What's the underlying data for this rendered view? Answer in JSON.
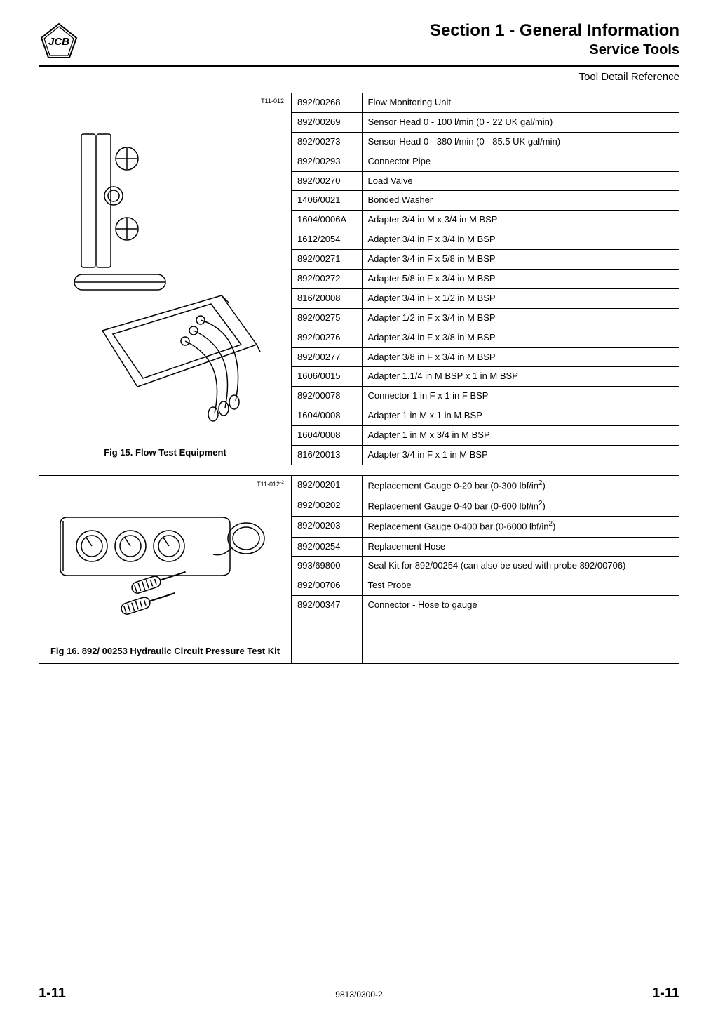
{
  "header": {
    "section": "Section 1 - General Information",
    "sub": "Service Tools",
    "toolRef": "Tool Detail Reference"
  },
  "fig15": {
    "code": "T11-012",
    "caption": "Fig 15. Flow Test Equipment",
    "rows": [
      {
        "pn": "892/00268",
        "desc": "Flow Monitoring Unit"
      },
      {
        "pn": "892/00269",
        "desc": "Sensor Head 0 - 100 l/min (0 - 22 UK gal/min)"
      },
      {
        "pn": "892/00273",
        "desc": "Sensor Head 0 - 380 l/min (0 - 85.5 UK gal/min)"
      },
      {
        "pn": "892/00293",
        "desc": "Connector Pipe"
      },
      {
        "pn": "892/00270",
        "desc": "Load Valve"
      },
      {
        "pn": "1406/0021",
        "desc": "Bonded Washer"
      },
      {
        "pn": "1604/0006A",
        "desc": "Adapter 3/4 in M x 3/4 in M BSP"
      },
      {
        "pn": "1612/2054",
        "desc": "Adapter 3/4 in F x 3/4 in M BSP"
      },
      {
        "pn": "892/00271",
        "desc": "Adapter 3/4 in F x 5/8 in M BSP"
      },
      {
        "pn": "892/00272",
        "desc": "Adapter 5/8 in F x 3/4 in M BSP"
      },
      {
        "pn": "816/20008",
        "desc": "Adapter 3/4 in F x 1/2 in M BSP"
      },
      {
        "pn": "892/00275",
        "desc": "Adapter 1/2 in F x 3/4 in M BSP"
      },
      {
        "pn": "892/00276",
        "desc": "Adapter 3/4 in F x 3/8 in M BSP"
      },
      {
        "pn": "892/00277",
        "desc": "Adapter 3/8 in F x 3/4 in M BSP"
      },
      {
        "pn": "1606/0015",
        "desc": "Adapter 1.1/4 in M BSP x 1 in M BSP"
      },
      {
        "pn": "892/00078",
        "desc": "Connector 1 in F x 1 in F BSP"
      },
      {
        "pn": "1604/0008",
        "desc": "Adapter 1 in M x 1 in M BSP"
      },
      {
        "pn": "1604/0008",
        "desc": "Adapter 1 in M x 3/4 in M BSP"
      },
      {
        "pn": "816/20013",
        "desc": "Adapter 3/4 in F x 1 in M BSP"
      }
    ]
  },
  "fig16": {
    "code": "T11-012",
    "codeSuffix": "-2",
    "caption": "Fig 16. 892/ 00253 Hydraulic Circuit Pressure Test Kit",
    "rows": [
      {
        "pn": "892/00201",
        "desc": "Replacement Gauge 0-20 bar (0-300 lbf/in",
        "sup": "2",
        "descEnd": ")"
      },
      {
        "pn": "892/00202",
        "desc": "Replacement Gauge 0-40 bar (0-600 lbf/in",
        "sup": "2",
        "descEnd": ")"
      },
      {
        "pn": "892/00203",
        "desc": "Replacement Gauge 0-400 bar (0-6000 lbf/in",
        "sup": "2",
        "descEnd": ")"
      },
      {
        "pn": "892/00254",
        "desc": "Replacement Hose"
      },
      {
        "pn": "993/69800",
        "desc": "Seal Kit for 892/00254 (can also be used with probe 892/00706)"
      },
      {
        "pn": "892/00706",
        "desc": "Test Probe"
      },
      {
        "pn": "892/00347",
        "desc": "Connector - Hose to gauge",
        "tall": true
      }
    ]
  },
  "footer": {
    "pageLeft": "1-11",
    "doc": "9813/0300-2",
    "pageRight": "1-11"
  }
}
